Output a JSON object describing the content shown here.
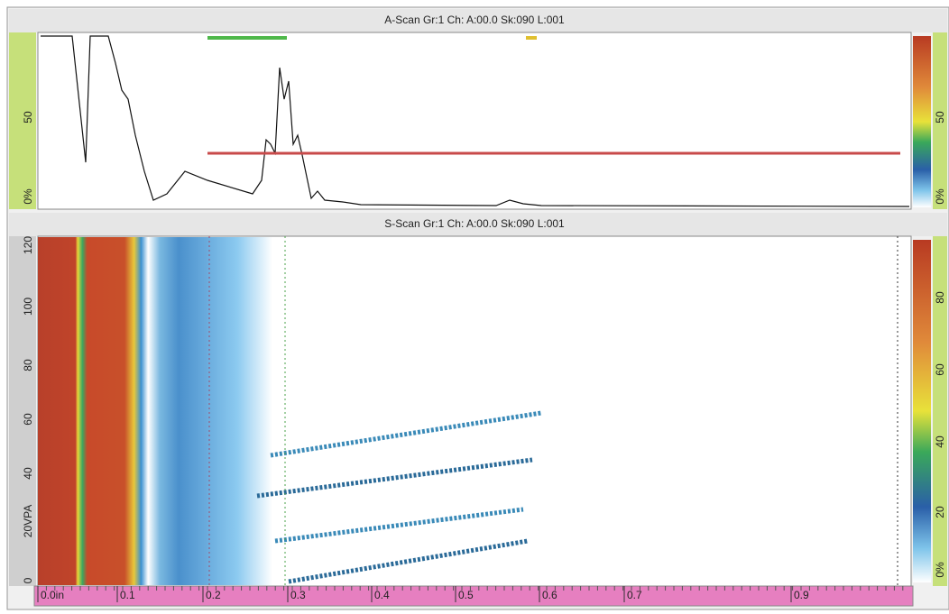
{
  "a_scan": {
    "title": "A-Scan Gr:1 Ch: A:00.0 Sk:090 L:001",
    "left_axis": [
      "50",
      "0%"
    ],
    "right_axis": [
      "50",
      "0%"
    ]
  },
  "s_scan": {
    "title": "S-Scan Gr:1 Ch: A:00.0 Sk:090 L:001",
    "left_axis": [
      "120",
      "100",
      "80",
      "60",
      "40",
      "20VPA",
      "0"
    ],
    "right_axis": [
      "80",
      "60",
      "40",
      "20",
      "0%"
    ]
  },
  "ruler": {
    "labels": [
      "0.0in",
      "0.1",
      "0.2",
      "0.3",
      "0.4",
      "0.5",
      "0.6",
      "0.7",
      "0.9"
    ]
  }
}
